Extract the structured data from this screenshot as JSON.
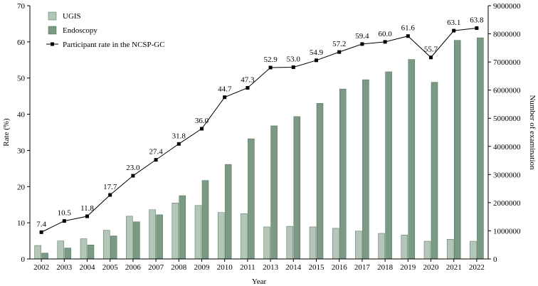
{
  "chart_data": {
    "type": "bar",
    "title": "",
    "xlabel": "Year",
    "ylabel_left": "Rate (%)",
    "ylabel_right": "Number of examination",
    "ylim_left": [
      0,
      70
    ],
    "yticks_left": [
      "0",
      "10",
      "20",
      "30",
      "40",
      "50",
      "60",
      "70"
    ],
    "ylim_right": [
      0,
      9000000
    ],
    "yticks_right": [
      "0",
      "1000000",
      "2000000",
      "3000000",
      "4000000",
      "5000000",
      "6000000",
      "7000000",
      "8000000",
      "9000000"
    ],
    "grid": false,
    "legend_position": "top-left",
    "categories": [
      "2002",
      "2003",
      "2004",
      "2005",
      "2006",
      "2007",
      "2008",
      "2009",
      "2010",
      "2011",
      "2013",
      "2014",
      "2015",
      "2016",
      "2017",
      "2018",
      "2019",
      "2020",
      "2021",
      "2022"
    ],
    "series": [
      {
        "name": "UGIS",
        "kind": "bar",
        "axis": "right",
        "color": "#b3c7b8",
        "values": [
          480000,
          640000,
          720000,
          1020000,
          1520000,
          1750000,
          1990000,
          1900000,
          1650000,
          1610000,
          1140000,
          1160000,
          1140000,
          1090000,
          990000,
          910000,
          850000,
          630000,
          700000,
          630000
        ]
      },
      {
        "name": "Endoscopy",
        "kind": "bar",
        "axis": "right",
        "color": "#7a9a83",
        "values": [
          210000,
          390000,
          500000,
          820000,
          1320000,
          1570000,
          2250000,
          2790000,
          3360000,
          4270000,
          4730000,
          5060000,
          5530000,
          6040000,
          6370000,
          6650000,
          7090000,
          6280000,
          7770000,
          7860000
        ]
      },
      {
        "name": "Participant rate in the NCSP-GC",
        "kind": "line",
        "axis": "left",
        "color": "#000000",
        "values": [
          7.4,
          10.5,
          11.8,
          17.7,
          23.0,
          27.4,
          31.8,
          36.0,
          44.7,
          47.3,
          52.9,
          53.0,
          54.9,
          57.2,
          59.4,
          60.0,
          61.6,
          55.7,
          63.1,
          63.8
        ],
        "labels": [
          "7.4",
          "10.5",
          "11.8",
          "17.7",
          "23.0",
          "27.4",
          "31.8",
          "36.0",
          "44.7",
          "47.3",
          "52.9",
          "53.0",
          "54.9",
          "57.2",
          "59.4",
          "60.0",
          "61.6",
          "55.7",
          "63.1",
          "63.8"
        ]
      }
    ]
  }
}
